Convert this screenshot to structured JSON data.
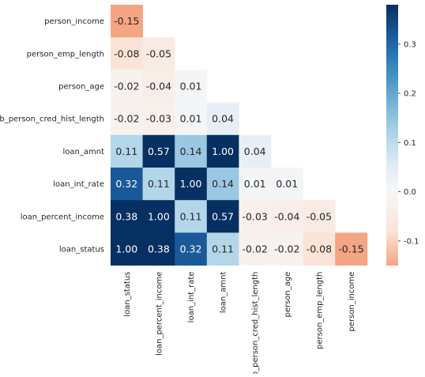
{
  "chart_data": {
    "type": "heatmap",
    "title": "",
    "xlabel": "",
    "ylabel": "",
    "x_categories": [
      "loan_status",
      "loan_percent_income",
      "loan_int_rate",
      "loan_amnt",
      "cb_person_cred_hist_length",
      "person_age",
      "person_emp_length",
      "person_income"
    ],
    "y_categories": [
      "person_income",
      "person_emp_length",
      "person_age",
      "cb_person_cred_hist_length",
      "loan_amnt",
      "loan_int_rate",
      "loan_percent_income",
      "loan_status"
    ],
    "values": [
      [
        -0.15,
        null,
        null,
        null,
        null,
        null,
        null,
        null
      ],
      [
        -0.08,
        -0.05,
        null,
        null,
        null,
        null,
        null,
        null
      ],
      [
        -0.02,
        -0.04,
        0.01,
        null,
        null,
        null,
        null,
        null
      ],
      [
        -0.02,
        -0.03,
        0.01,
        0.04,
        null,
        null,
        null,
        null
      ],
      [
        0.11,
        0.57,
        0.14,
        1.0,
        0.04,
        null,
        null,
        null
      ],
      [
        0.32,
        0.11,
        1.0,
        0.14,
        0.01,
        0.01,
        null,
        null
      ],
      [
        0.38,
        1.0,
        0.11,
        0.57,
        -0.03,
        -0.04,
        -0.05,
        null
      ],
      [
        1.0,
        0.38,
        0.32,
        0.11,
        -0.02,
        -0.02,
        -0.08,
        -0.15
      ]
    ],
    "cell_labels": [
      [
        "-0.15",
        "",
        "",
        "",
        "",
        "",
        "",
        ""
      ],
      [
        "-0.08",
        "-0.05",
        "",
        "",
        "",
        "",
        "",
        ""
      ],
      [
        "-0.02",
        "-0.04",
        "0.01",
        "",
        "",
        "",
        "",
        ""
      ],
      [
        "-0.02",
        "-0.03",
        "0.01",
        "0.04",
        "",
        "",
        "",
        ""
      ],
      [
        "0.11",
        "0.57",
        "0.14",
        "1.00",
        "0.04",
        "",
        "",
        ""
      ],
      [
        "0.32",
        "0.11",
        "1.00",
        "0.14",
        "0.01",
        "0.01",
        "",
        ""
      ],
      [
        "0.38",
        "1.00",
        "0.11",
        "0.57",
        "-0.03",
        "-0.04",
        "-0.05",
        ""
      ],
      [
        "1.00",
        "0.38",
        "0.32",
        "0.11",
        "-0.02",
        "-0.02",
        "-0.08",
        "-0.15"
      ]
    ],
    "color_scale": {
      "colormap": "RdBu",
      "vmin": -0.15,
      "vmax": 0.38,
      "center": 0,
      "low_color": "#f4a582",
      "zero_color": "#f7f7f7",
      "high_color": "#053061"
    },
    "colorbar": {
      "ticks": [
        -0.1,
        0.0,
        0.1,
        0.2,
        0.3
      ],
      "tick_labels": [
        "-0.1",
        "0.0",
        "0.1",
        "0.2",
        "0.3"
      ]
    },
    "grid": false,
    "legend": "colorbar-right"
  }
}
